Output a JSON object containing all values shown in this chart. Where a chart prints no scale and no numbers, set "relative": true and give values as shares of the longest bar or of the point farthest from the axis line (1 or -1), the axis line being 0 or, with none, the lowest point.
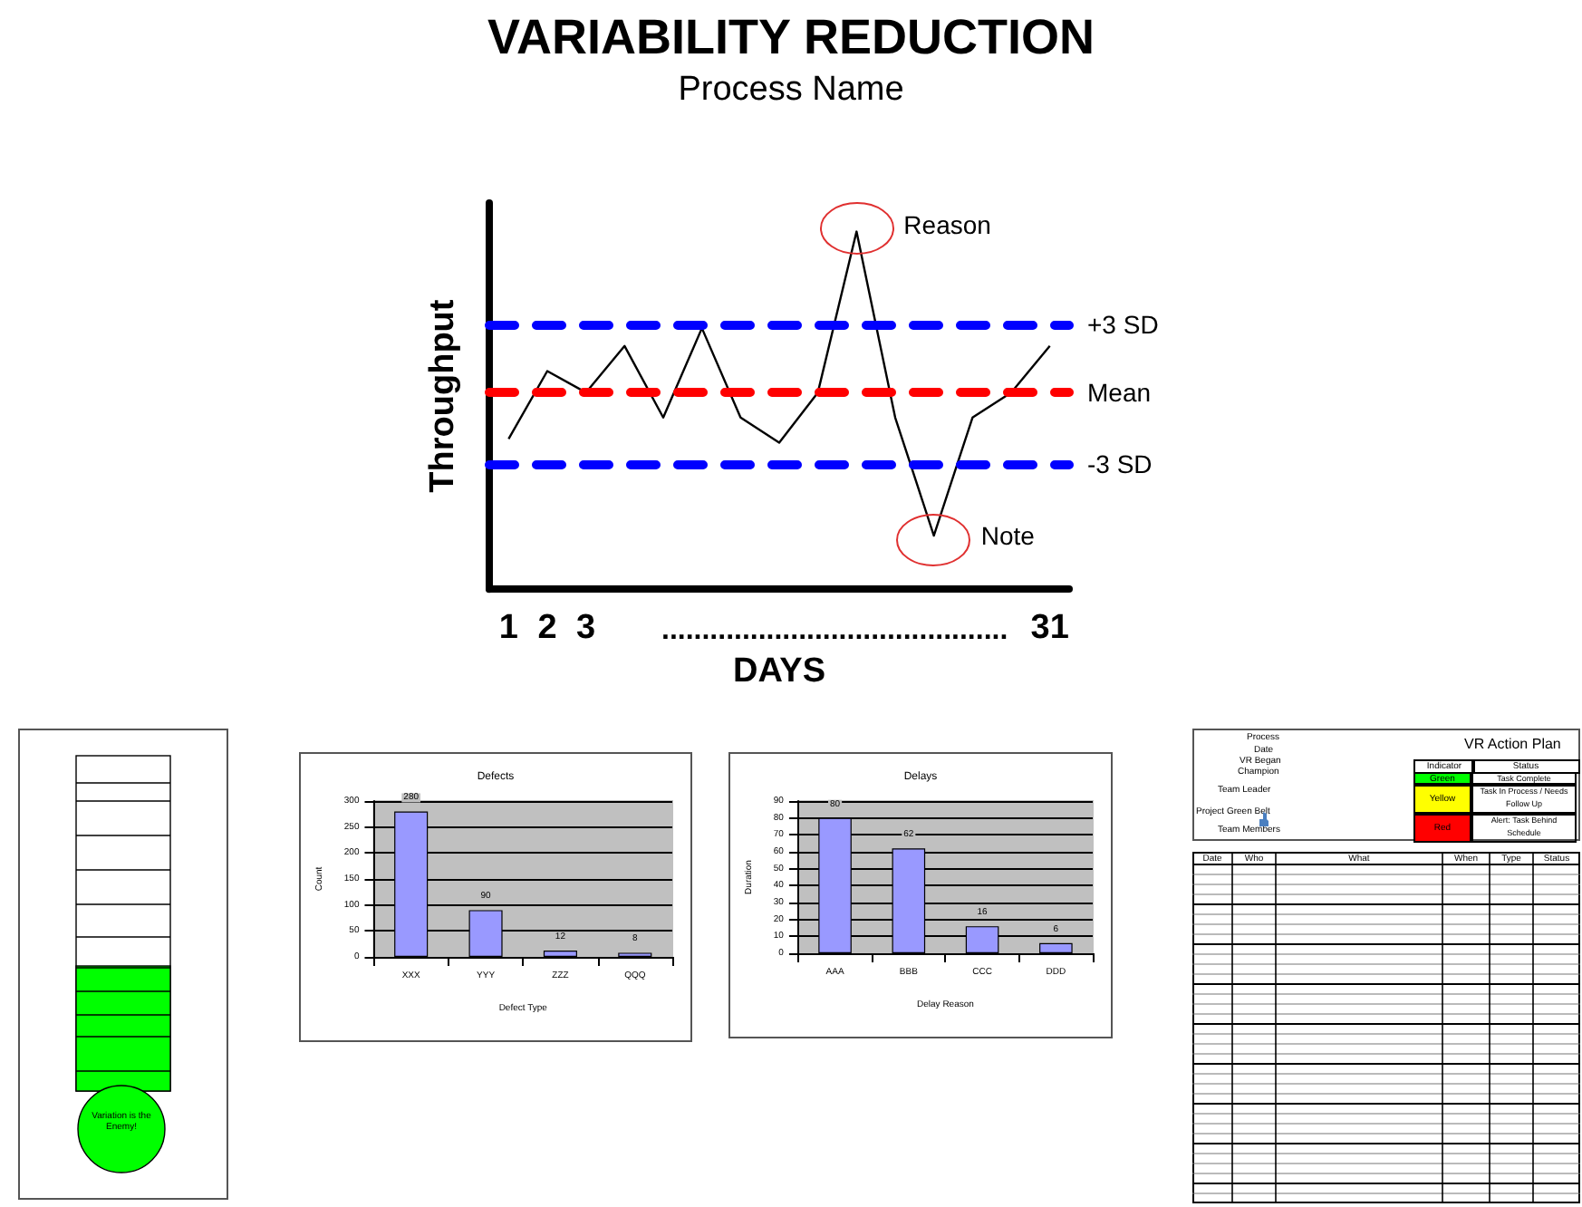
{
  "chart_data": [
    {
      "type": "line",
      "title": "VARIABILITY REDUCTION",
      "subtitle": "Process Name",
      "ylabel": "Throughput",
      "xlabel": "DAYS",
      "relative": true,
      "color": "#000000",
      "marker": "none",
      "line_style": "solid",
      "grid": false,
      "categories": [
        "1",
        "2",
        "3",
        null,
        null,
        null,
        null,
        null,
        null,
        null,
        null,
        null,
        null,
        null,
        "31"
      ],
      "values": [
        0.42,
        0.61,
        0.55,
        0.68,
        0.48,
        0.73,
        0.48,
        0.41,
        0.55,
        1,
        0.48,
        0.15,
        0.48,
        0.55,
        0.68
      ],
      "ref_lines": [
        {
          "axis": "y",
          "value": 0.74,
          "label": "+3 SD",
          "color": "#0000ff",
          "line_style": "dashed"
        },
        {
          "axis": "y",
          "value": 0.55,
          "label": "Mean",
          "color": "#ff0000",
          "line_style": "dashed"
        },
        {
          "axis": "y",
          "value": 0.35,
          "label": "-3 SD",
          "color": "#0000ff",
          "line_style": "dashed"
        }
      ],
      "annotations": [
        "Reason",
        "Note",
        "..........................................."
      ]
    },
    {
      "type": "other",
      "annotations": [
        "Variation is the Enemy!"
      ]
    },
    {
      "type": "bar",
      "title": "Defects",
      "xlabel": "Defect Type",
      "ylabel": "Count",
      "categories": [
        "XXX",
        "YYY",
        "ZZZ",
        "QQQ"
      ],
      "values": [
        280,
        90,
        12,
        8
      ],
      "color": "#9999ff",
      "ylim": [
        0,
        300
      ],
      "yticks": [
        0,
        50,
        100,
        150,
        200,
        250,
        300
      ],
      "grid": "y",
      "data_labels": true
    },
    {
      "type": "bar",
      "title": "Delays",
      "xlabel": "Delay Reason",
      "ylabel": "Duration",
      "categories": [
        "AAA",
        "BBB",
        "CCC",
        "DDD"
      ],
      "values": [
        80,
        62,
        16,
        6
      ],
      "color": "#9999ff",
      "ylim": [
        0,
        90
      ],
      "yticks": [
        0,
        10,
        20,
        30,
        40,
        50,
        60,
        70,
        80,
        90
      ],
      "grid": "y",
      "data_labels": true
    },
    {
      "type": "other",
      "title": "VR Action Plan",
      "annotations": [
        "Process",
        "Date",
        "VR Began",
        "Champion",
        "Team Leader",
        "Project Green Belt",
        "Team Members",
        "Indicator",
        "Status",
        "Green",
        "Task Complete",
        "Yellow",
        "Task In Process / Needs Follow Up",
        "Red",
        "Alert: Task Behind Schedule",
        "Date",
        "Who",
        "What",
        "When",
        "Type",
        "Status"
      ]
    }
  ]
}
